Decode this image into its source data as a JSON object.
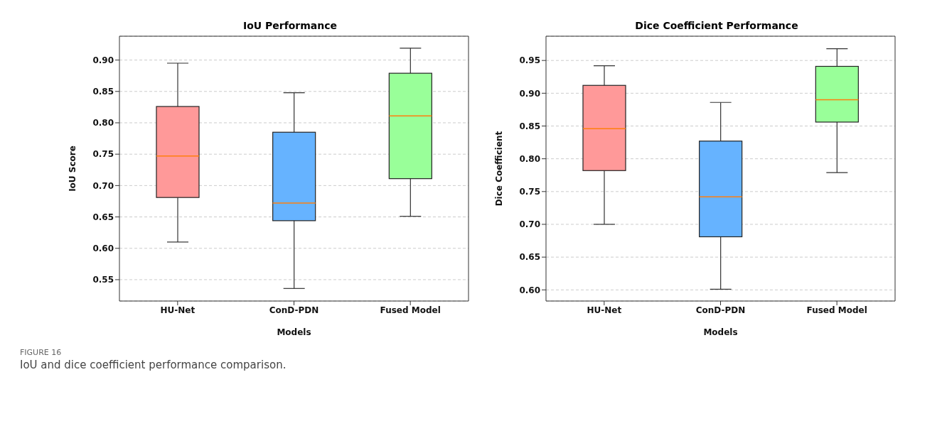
{
  "chart_data": [
    {
      "type": "box",
      "title": "IoU Performance",
      "xlabel": "Models",
      "ylabel": "IoU Score",
      "categories": [
        "HU-Net",
        "ConD-PDN",
        "Fused Model"
      ],
      "colors": [
        "#ff9999",
        "#66b3ff",
        "#99ff99"
      ],
      "boxes": [
        {
          "low": 0.61,
          "q1": 0.681,
          "median": 0.747,
          "q3": 0.826,
          "high": 0.895
        },
        {
          "low": 0.536,
          "q1": 0.644,
          "median": 0.672,
          "q3": 0.785,
          "high": 0.848
        },
        {
          "low": 0.651,
          "q1": 0.711,
          "median": 0.811,
          "q3": 0.879,
          "high": 0.919
        }
      ],
      "ylim": [
        0.516,
        0.938
      ],
      "yticks": [
        {
          "value": 0.55,
          "label": "0.55"
        },
        {
          "value": 0.6,
          "label": "0.60"
        },
        {
          "value": 0.65,
          "label": "0.65"
        },
        {
          "value": 0.7,
          "label": "0.70"
        },
        {
          "value": 0.75,
          "label": "0.75"
        },
        {
          "value": 0.8,
          "label": "0.80"
        },
        {
          "value": 0.85,
          "label": "0.85"
        },
        {
          "value": 0.9,
          "label": "0.90"
        }
      ],
      "grid": "y",
      "annotations": [
        "FIGURE 16",
        "IoU and dice coefficient performance comparison."
      ]
    },
    {
      "type": "box",
      "title": "Dice Coefficient Performance",
      "xlabel": "Models",
      "ylabel": "Dice Coefficient",
      "categories": [
        "HU-Net",
        "ConD-PDN",
        "Fused Model"
      ],
      "colors": [
        "#ff9999",
        "#66b3ff",
        "#99ff99"
      ],
      "boxes": [
        {
          "low": 0.7,
          "q1": 0.782,
          "median": 0.846,
          "q3": 0.912,
          "high": 0.942
        },
        {
          "low": 0.601,
          "q1": 0.681,
          "median": 0.742,
          "q3": 0.827,
          "high": 0.886
        },
        {
          "low": 0.779,
          "q1": 0.856,
          "median": 0.89,
          "q3": 0.941,
          "high": 0.968
        }
      ],
      "ylim": [
        0.583,
        0.987
      ],
      "yticks": [
        {
          "value": 0.6,
          "label": "0.60"
        },
        {
          "value": 0.65,
          "label": "0.65"
        },
        {
          "value": 0.7,
          "label": "0.70"
        },
        {
          "value": 0.75,
          "label": "0.75"
        },
        {
          "value": 0.8,
          "label": "0.80"
        },
        {
          "value": 0.85,
          "label": "0.85"
        },
        {
          "value": 0.9,
          "label": "0.90"
        },
        {
          "value": 0.95,
          "label": "0.95"
        }
      ],
      "grid": "y"
    }
  ]
}
